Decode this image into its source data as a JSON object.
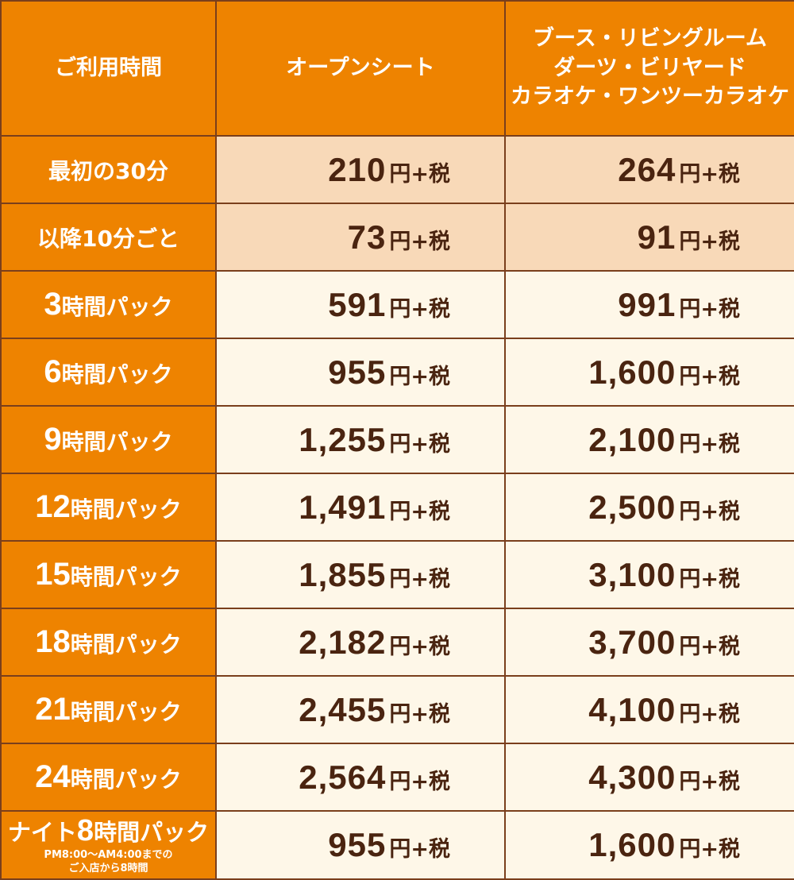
{
  "header": {
    "col0": "ご利用時間",
    "col1": "オープンシート",
    "col2_lines": [
      "ブース・リビングルーム",
      "ダーツ・ビリヤード",
      "カラオケ・ワンツーカラオケ"
    ]
  },
  "unit": "円+税",
  "rows": [
    {
      "label": "最初の30分",
      "open": "210",
      "booth": "264"
    },
    {
      "label": "以降10分ごと",
      "open": "73",
      "booth": "91"
    },
    {
      "label_num": "3",
      "label_text": "時間パック",
      "open": "591",
      "booth": "991"
    },
    {
      "label_num": "6",
      "label_text": "時間パック",
      "open": "955",
      "booth": "1,600"
    },
    {
      "label_num": "9",
      "label_text": "時間パック",
      "open": "1,255",
      "booth": "2,100"
    },
    {
      "label_num": "12",
      "label_text": "時間パック",
      "open": "1,491",
      "booth": "2,500"
    },
    {
      "label_num": "15",
      "label_text": "時間パック",
      "open": "1,855",
      "booth": "3,100"
    },
    {
      "label_num": "18",
      "label_text": "時間パック",
      "open": "2,182",
      "booth": "3,700"
    },
    {
      "label_num": "21",
      "label_text": "時間パック",
      "open": "2,455",
      "booth": "4,100"
    },
    {
      "label_num": "24",
      "label_text": "時間パック",
      "open": "2,564",
      "booth": "4,300"
    }
  ],
  "night": {
    "prefix": "ナイト",
    "num": "8",
    "suffix": "時間パック",
    "sub1": "PM8:00～AM4:00までの",
    "sub2": "ご入店から8時間",
    "open": "955",
    "booth": "1,600"
  },
  "colors": {
    "orange": "#ee8300",
    "shade": "#f8d9b8",
    "cream": "#fef7e8",
    "text_brown": "#4a2410",
    "border": "#7a3f1c"
  }
}
